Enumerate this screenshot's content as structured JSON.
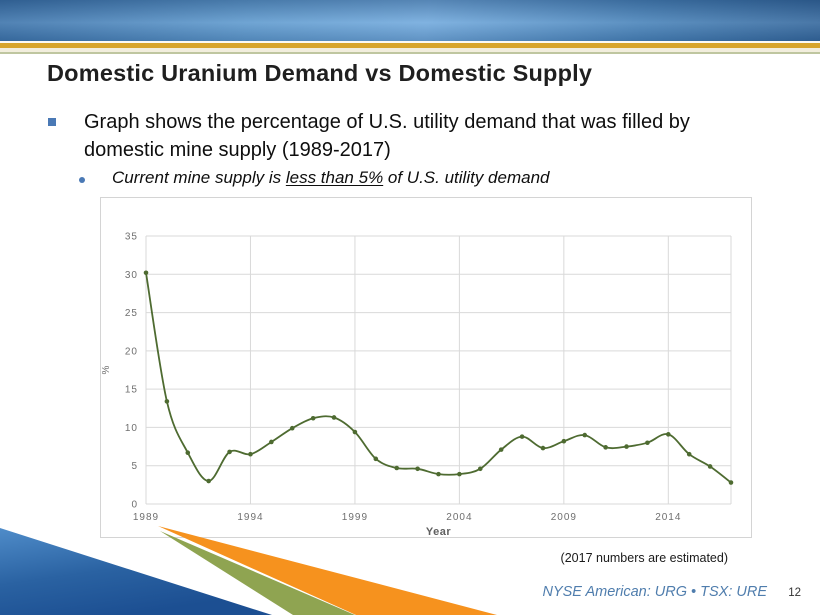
{
  "slide": {
    "title": "Domestic Uranium Demand vs Domestic Supply",
    "bullet": "Graph shows the percentage of U.S. utility demand that was filled by domestic mine supply (1989-2017)",
    "sub_bullet": {
      "pre": "Current mine supply is ",
      "underline": "less than 5%",
      "post": " of U.S. utility demand"
    },
    "footnote": "(2017 numbers are estimated)",
    "ticker": "NYSE American: URG • TSX: URE",
    "page_number": "12"
  },
  "colors": {
    "banner_blue_dark": "#35689d",
    "banner_blue_light": "#72aadd",
    "stripe_gold": "#d7a52c",
    "stripe_cream": "#f2eedd",
    "stripe_sage": "#bfc6a0",
    "bullet_blue": "#4a79b5",
    "ticker_blue": "#4f7dad",
    "wedge_orange": "#f6921e",
    "wedge_green": "#8fa451",
    "wedge_blue_dark": "#1c4f92",
    "wedge_blue_light": "#4f8cc9"
  },
  "chart_data": {
    "type": "line",
    "title": "",
    "xlabel": "Year",
    "ylabel": "%",
    "x": [
      1989,
      1990,
      1991,
      1992,
      1993,
      1994,
      1995,
      1996,
      1997,
      1998,
      1999,
      2000,
      2001,
      2002,
      2003,
      2004,
      2005,
      2006,
      2007,
      2008,
      2009,
      2010,
      2011,
      2012,
      2013,
      2014,
      2015,
      2016,
      2017
    ],
    "values": [
      30.2,
      13.4,
      6.7,
      3.0,
      6.8,
      6.5,
      8.1,
      9.9,
      11.2,
      11.3,
      9.4,
      5.9,
      4.7,
      4.6,
      3.9,
      3.9,
      4.6,
      7.1,
      8.8,
      7.3,
      8.2,
      9.0,
      7.4,
      7.5,
      8.0,
      9.1,
      6.5,
      4.9,
      2.8
    ],
    "ylim": [
      0,
      35
    ],
    "yticks": [
      0,
      5,
      10,
      15,
      20,
      25,
      30,
      35
    ],
    "xticks": [
      1989,
      1994,
      1999,
      2004,
      2009,
      2014
    ],
    "grid": true,
    "legend": "none",
    "smooth": true,
    "marker": "circle",
    "line_color": "#4e6b31",
    "grid_color": "#d9d9d9",
    "tick_color": "#6f6f6f",
    "axis_title_color": "#5f5f5f"
  }
}
